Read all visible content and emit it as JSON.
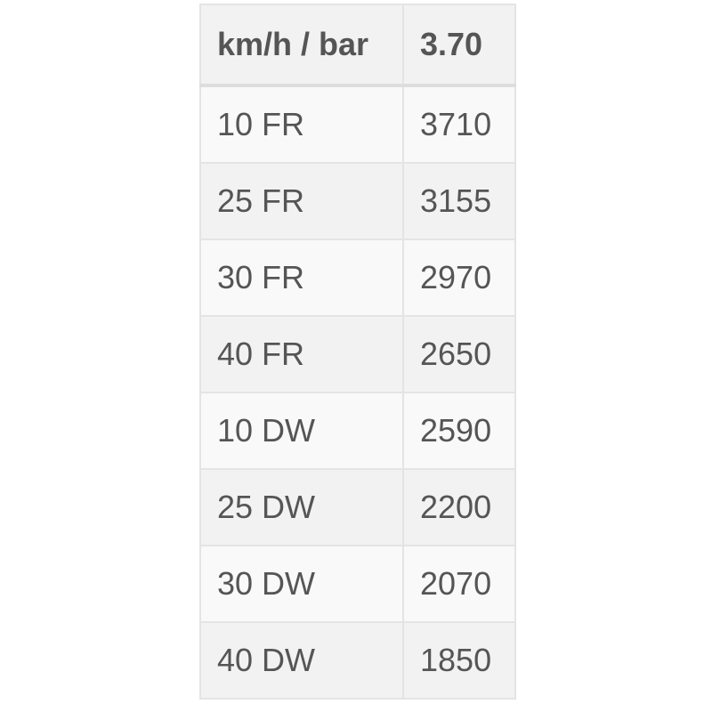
{
  "table": {
    "headers": [
      "km/h / bar",
      "3.70"
    ],
    "rows": [
      [
        "10 FR",
        "3710"
      ],
      [
        "25 FR",
        "3155"
      ],
      [
        "30 FR",
        "2970"
      ],
      [
        "40 FR",
        "2650"
      ],
      [
        "10 DW",
        "2590"
      ],
      [
        "25 DW",
        "2200"
      ],
      [
        "30 DW",
        "2070"
      ],
      [
        "40 DW",
        "1850"
      ]
    ]
  }
}
